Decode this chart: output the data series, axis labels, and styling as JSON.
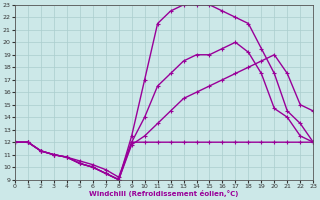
{
  "xlabel": "Windchill (Refroidissement éolien,°C)",
  "xlim": [
    0,
    23
  ],
  "ylim": [
    9,
    23
  ],
  "xticks": [
    0,
    1,
    2,
    3,
    4,
    5,
    6,
    7,
    8,
    9,
    10,
    11,
    12,
    13,
    14,
    15,
    16,
    17,
    18,
    19,
    20,
    21,
    22,
    23
  ],
  "yticks": [
    9,
    10,
    11,
    12,
    13,
    14,
    15,
    16,
    17,
    18,
    19,
    20,
    21,
    22,
    23
  ],
  "bg_color": "#cce8e8",
  "line_color": "#990099",
  "grid_color": "#aacece",
  "line1_x": [
    0,
    1,
    2,
    3,
    4,
    5,
    6,
    7,
    8,
    9,
    10,
    11,
    12,
    13,
    14,
    15,
    16,
    17,
    18,
    19,
    20,
    21,
    22,
    23
  ],
  "line1_y": [
    12.0,
    12.0,
    11.3,
    11.0,
    10.8,
    10.5,
    10.2,
    9.8,
    9.2,
    12.0,
    12.0,
    12.0,
    12.0,
    12.0,
    12.0,
    12.0,
    12.0,
    12.0,
    12.0,
    12.0,
    12.0,
    12.0,
    12.0,
    12.0
  ],
  "line2_x": [
    0,
    1,
    2,
    3,
    4,
    5,
    6,
    7,
    8,
    9,
    10,
    11,
    12,
    13,
    14,
    15,
    16,
    17,
    18,
    19,
    20,
    21,
    22,
    23
  ],
  "line2_y": [
    12.0,
    12.0,
    11.3,
    11.0,
    10.8,
    10.3,
    10.0,
    9.5,
    9.0,
    11.8,
    12.5,
    13.5,
    14.5,
    15.5,
    16.0,
    16.5,
    17.0,
    17.5,
    18.0,
    18.5,
    19.0,
    17.5,
    15.0,
    14.5
  ],
  "line3_x": [
    0,
    1,
    2,
    3,
    4,
    5,
    6,
    7,
    8,
    9,
    10,
    11,
    12,
    13,
    14,
    15,
    16,
    17,
    18,
    19,
    20,
    21,
    22,
    23
  ],
  "line3_y": [
    12.0,
    12.0,
    11.3,
    11.0,
    10.8,
    10.3,
    10.0,
    9.5,
    9.0,
    12.0,
    14.0,
    16.5,
    17.5,
    18.5,
    19.0,
    19.0,
    19.5,
    20.0,
    19.2,
    17.5,
    14.7,
    14.0,
    12.5,
    12.0
  ],
  "line4_x": [
    0,
    1,
    2,
    3,
    4,
    5,
    6,
    7,
    8,
    9,
    10,
    11,
    12,
    13,
    14,
    15,
    16,
    17,
    18,
    19,
    20,
    21,
    22,
    23
  ],
  "line4_y": [
    12.0,
    12.0,
    11.3,
    11.0,
    10.8,
    10.3,
    10.0,
    9.5,
    9.0,
    12.5,
    17.0,
    21.5,
    22.5,
    23.0,
    23.0,
    23.0,
    22.5,
    22.0,
    21.5,
    19.5,
    17.5,
    14.5,
    13.5,
    12.0
  ],
  "markersize": 2.5,
  "linewidth": 1.0
}
